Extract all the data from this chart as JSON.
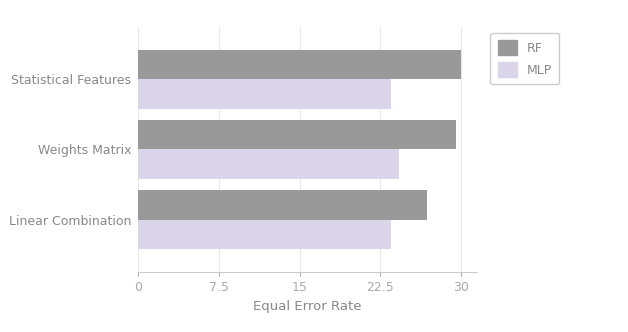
{
  "categories": [
    "Linear Combination",
    "Weights Matrix",
    "Statistical Features"
  ],
  "rf_values": [
    26.8,
    29.5,
    30.0
  ],
  "mlp_values": [
    23.5,
    24.2,
    23.5
  ],
  "rf_color": "#999999",
  "mlp_color": "#dbd5ea",
  "xlabel": "Equal Error Rate",
  "xlim": [
    0,
    31.5
  ],
  "xticks": [
    0,
    7.5,
    15,
    22.5,
    30
  ],
  "xtick_labels": [
    "0",
    "7.5",
    "15",
    "22.5",
    "30"
  ],
  "legend_labels": [
    "RF",
    "MLP"
  ],
  "bar_height": 0.42,
  "tick_fontsize": 9,
  "label_fontsize": 9.5,
  "legend_fontsize": 9
}
